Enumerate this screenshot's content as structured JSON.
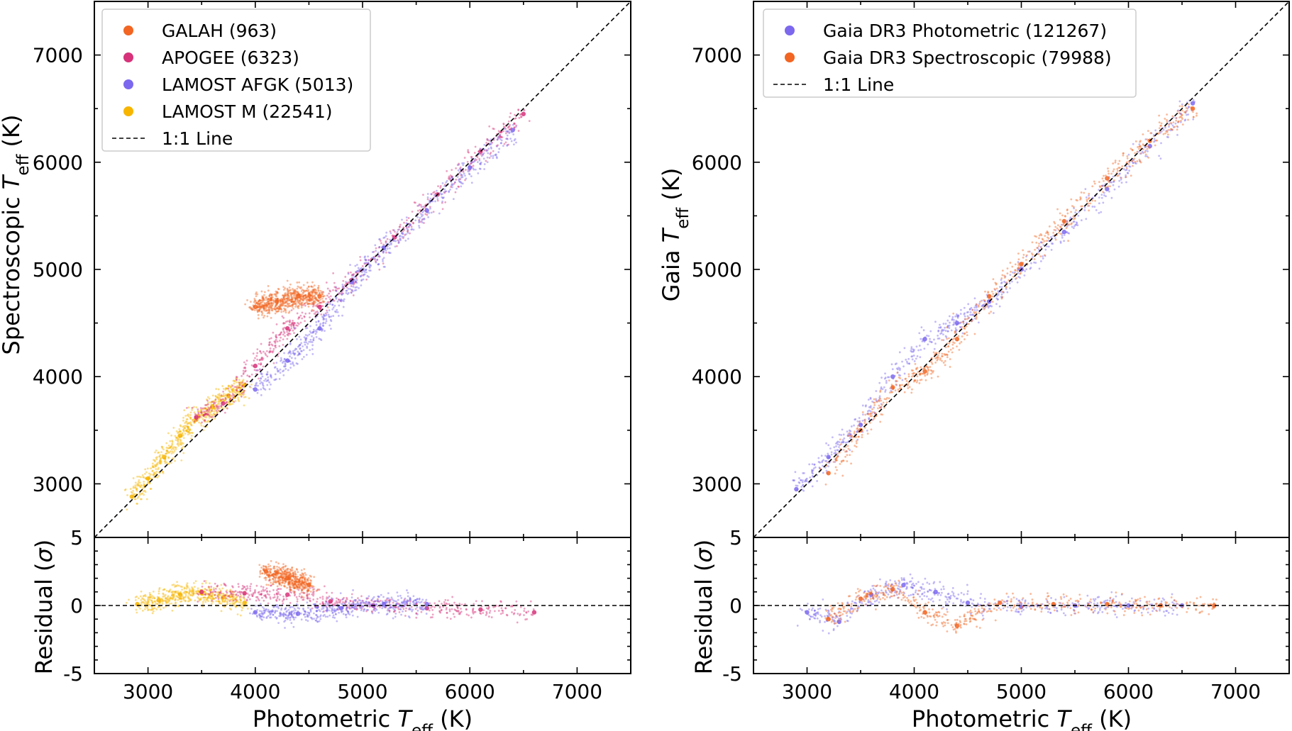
{
  "chart_data": [
    {
      "type": "scatter",
      "panel": "left-top",
      "xlabel": "Photometric T_eff (K)",
      "ylabel": "Spectroscopic T_eff (K)",
      "ylabel_parts": [
        "Spectroscopic ",
        "T",
        "eff",
        " (K)"
      ],
      "xlim": [
        2500,
        7500
      ],
      "ylim": [
        2500,
        7500
      ],
      "yticks": [
        3000,
        4000,
        5000,
        6000,
        7000
      ],
      "legend_position": "top-left",
      "legend": [
        {
          "label": "GALAH (963)",
          "color": "#f26522",
          "marker": "dot"
        },
        {
          "label": "APOGEE (6323)",
          "color": "#d6337a",
          "marker": "dot"
        },
        {
          "label": "LAMOST AFGK (5013)",
          "color": "#7b68ee",
          "marker": "dot"
        },
        {
          "label": "LAMOST M (22541)",
          "color": "#f7b500",
          "marker": "dot"
        },
        {
          "label": "1:1 Line",
          "color": "#000000",
          "marker": "dashed-line"
        }
      ],
      "series": [
        {
          "name": "LAMOST M",
          "color": "#f7b500",
          "x": [
            2850,
            3000,
            3150,
            3300,
            3450,
            3600,
            3750,
            3900
          ],
          "y": [
            2880,
            3050,
            3250,
            3450,
            3600,
            3720,
            3820,
            3920
          ]
        },
        {
          "name": "APOGEE",
          "color": "#d6337a",
          "x": [
            3450,
            3700,
            4000,
            4300,
            4600,
            4900,
            5300,
            5700,
            6100,
            6500
          ],
          "y": [
            3620,
            3750,
            4100,
            4450,
            4650,
            4900,
            5300,
            5700,
            6100,
            6450
          ]
        },
        {
          "name": "LAMOST AFGK",
          "color": "#7b68ee",
          "x": [
            4000,
            4300,
            4600,
            4900,
            5200,
            5600,
            6000,
            6400
          ],
          "y": [
            3880,
            4150,
            4450,
            4880,
            5200,
            5550,
            5950,
            6300
          ]
        },
        {
          "name": "GALAH",
          "color": "#f26522",
          "x": [
            4000,
            4200,
            4400,
            4600
          ],
          "y": [
            4650,
            4700,
            4750,
            4750
          ]
        }
      ]
    },
    {
      "type": "scatter",
      "panel": "left-bottom",
      "xlabel": "Photometric T_eff (K)",
      "xlabel_parts": [
        "Photometric ",
        "T",
        "eff",
        " (K)"
      ],
      "ylabel": "Residual (σ)",
      "ylabel_parts": [
        "Residual (",
        "σ",
        ")"
      ],
      "xlim": [
        2500,
        7500
      ],
      "ylim": [
        -5,
        5
      ],
      "yticks": [
        -5,
        0,
        5
      ],
      "yticklabels": [
        "-5",
        "0",
        "5"
      ],
      "xticks": [
        3000,
        4000,
        5000,
        6000,
        7000
      ],
      "series": [
        {
          "name": "LAMOST M",
          "color": "#f7b500",
          "x": [
            2900,
            3100,
            3300,
            3500,
            3700,
            3900
          ],
          "y": [
            0.1,
            0.4,
            0.8,
            0.9,
            0.6,
            0.2
          ]
        },
        {
          "name": "APOGEE",
          "color": "#d6337a",
          "x": [
            3500,
            3900,
            4300,
            4700,
            5100,
            5600,
            6100,
            6600
          ],
          "y": [
            1.0,
            0.9,
            0.8,
            0.3,
            0.0,
            -0.2,
            -0.3,
            -0.5
          ]
        },
        {
          "name": "LAMOST AFGK",
          "color": "#7b68ee",
          "x": [
            4000,
            4400,
            4800,
            5200,
            5600
          ],
          "y": [
            -0.5,
            -0.6,
            -0.2,
            0.1,
            0.1
          ]
        },
        {
          "name": "GALAH",
          "color": "#f26522",
          "x": [
            4100,
            4300,
            4500
          ],
          "y": [
            2.5,
            2.0,
            1.5
          ]
        }
      ]
    },
    {
      "type": "scatter",
      "panel": "right-top",
      "xlabel": "Photometric T_eff (K)",
      "ylabel": "Gaia T_eff (K)",
      "ylabel_parts": [
        "Gaia ",
        "T",
        "eff",
        " (K)"
      ],
      "xlim": [
        2500,
        7500
      ],
      "ylim": [
        2500,
        7500
      ],
      "yticks": [
        3000,
        4000,
        5000,
        6000,
        7000
      ],
      "legend_position": "top-left",
      "legend": [
        {
          "label": "Gaia DR3 Photometric (121267)",
          "color": "#7b68ee",
          "marker": "dot"
        },
        {
          "label": "Gaia DR3 Spectroscopic (79988)",
          "color": "#f26522",
          "marker": "dot"
        },
        {
          "label": "1:1 Line",
          "color": "#000000",
          "marker": "dashed-line"
        }
      ],
      "series": [
        {
          "name": "Gaia DR3 Photometric",
          "color": "#7b68ee",
          "x": [
            2900,
            3200,
            3500,
            3800,
            4100,
            4400,
            4700,
            5000,
            5400,
            5800,
            6200,
            6600
          ],
          "y": [
            2950,
            3250,
            3550,
            4000,
            4350,
            4500,
            4700,
            5000,
            5350,
            5750,
            6150,
            6550
          ]
        },
        {
          "name": "Gaia DR3 Spectroscopic",
          "color": "#f26522",
          "x": [
            3200,
            3500,
            3800,
            4100,
            4400,
            4700,
            5000,
            5400,
            5800,
            6200,
            6600
          ],
          "y": [
            3100,
            3500,
            3900,
            4050,
            4350,
            4750,
            5050,
            5450,
            5850,
            6200,
            6500
          ]
        }
      ]
    },
    {
      "type": "scatter",
      "panel": "right-bottom",
      "xlabel": "Photometric T_eff (K)",
      "xlabel_parts": [
        "Photometric ",
        "T",
        "eff",
        " (K)"
      ],
      "ylabel": "Residual (σ)",
      "ylabel_parts": [
        "Residual (",
        "σ",
        ")"
      ],
      "xlim": [
        2500,
        7500
      ],
      "ylim": [
        -5,
        5
      ],
      "yticks": [
        -5,
        0,
        5
      ],
      "yticklabels": [
        "-5",
        "0",
        "5"
      ],
      "xticks": [
        3000,
        4000,
        5000,
        6000,
        7000
      ],
      "series": [
        {
          "name": "Gaia DR3 Photometric",
          "color": "#7b68ee",
          "x": [
            3000,
            3300,
            3600,
            3900,
            4200,
            4500,
            5000,
            5500,
            6000,
            6500
          ],
          "y": [
            -0.5,
            -1.2,
            0.8,
            1.5,
            1.0,
            0.2,
            -0.1,
            0.0,
            0.0,
            0.0
          ]
        },
        {
          "name": "Gaia DR3 Spectroscopic",
          "color": "#f26522",
          "x": [
            3200,
            3500,
            3800,
            4100,
            4400,
            4800,
            5300,
            5800,
            6300,
            6800
          ],
          "y": [
            -1.0,
            0.5,
            1.2,
            -0.5,
            -1.5,
            0.2,
            0.1,
            0.1,
            0.0,
            0.0
          ]
        }
      ]
    }
  ]
}
